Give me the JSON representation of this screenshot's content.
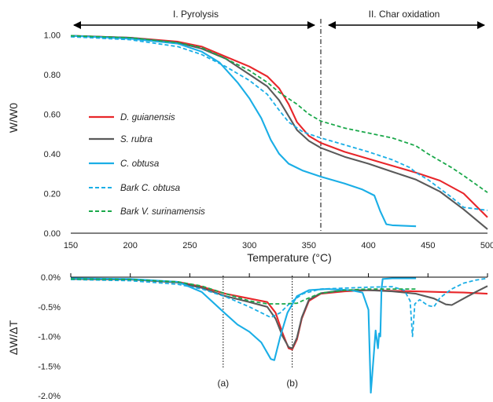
{
  "chart_data": [
    {
      "type": "line",
      "xlabel": "Temperature (°C)",
      "ylabel": "W/W0",
      "xlim": [
        150,
        500
      ],
      "ylim": [
        0,
        1.1
      ],
      "x_ticks": [
        "150",
        "200",
        "250",
        "300",
        "350",
        "400",
        "450",
        "500"
      ],
      "y_ticks": [
        "0.00",
        "0.20",
        "0.40",
        "0.60",
        "0.80",
        "1.00"
      ],
      "grid": false,
      "legend_position": "left",
      "phases": [
        {
          "label": "I. Pyrolysis",
          "x_range": [
            150,
            360
          ]
        },
        {
          "label": "II. Char oxidation",
          "x_range": [
            360,
            500
          ]
        }
      ],
      "phase_boundary_x": 360,
      "series": [
        {
          "name": "D. guianensis",
          "color": "#e8262a",
          "dash": "solid",
          "points": [
            [
              150,
              0.995
            ],
            [
              200,
              0.985
            ],
            [
              240,
              0.965
            ],
            [
              260,
              0.94
            ],
            [
              280,
              0.89
            ],
            [
              300,
              0.84
            ],
            [
              315,
              0.79
            ],
            [
              325,
              0.73
            ],
            [
              333,
              0.65
            ],
            [
              340,
              0.56
            ],
            [
              350,
              0.49
            ],
            [
              360,
              0.455
            ],
            [
              380,
              0.41
            ],
            [
              400,
              0.375
            ],
            [
              420,
              0.34
            ],
            [
              440,
              0.305
            ],
            [
              460,
              0.265
            ],
            [
              480,
              0.2
            ],
            [
              500,
              0.08
            ]
          ]
        },
        {
          "name": "S. rubra",
          "color": "#5a5a5a",
          "dash": "solid",
          "points": [
            [
              150,
              0.995
            ],
            [
              200,
              0.985
            ],
            [
              240,
              0.96
            ],
            [
              260,
              0.93
            ],
            [
              280,
              0.88
            ],
            [
              300,
              0.8
            ],
            [
              315,
              0.74
            ],
            [
              325,
              0.67
            ],
            [
              333,
              0.59
            ],
            [
              340,
              0.52
            ],
            [
              350,
              0.465
            ],
            [
              360,
              0.43
            ],
            [
              380,
              0.385
            ],
            [
              400,
              0.35
            ],
            [
              420,
              0.31
            ],
            [
              440,
              0.27
            ],
            [
              460,
              0.21
            ],
            [
              480,
              0.12
            ],
            [
              500,
              0.02
            ]
          ]
        },
        {
          "name": "C. obtusa",
          "color": "#1aaee6",
          "dash": "solid",
          "points": [
            [
              150,
              0.995
            ],
            [
              200,
              0.98
            ],
            [
              240,
              0.955
            ],
            [
              260,
              0.915
            ],
            [
              275,
              0.86
            ],
            [
              290,
              0.76
            ],
            [
              300,
              0.68
            ],
            [
              310,
              0.58
            ],
            [
              318,
              0.47
            ],
            [
              325,
              0.4
            ],
            [
              333,
              0.35
            ],
            [
              345,
              0.315
            ],
            [
              360,
              0.285
            ],
            [
              380,
              0.25
            ],
            [
              395,
              0.22
            ],
            [
              405,
              0.19
            ],
            [
              410,
              0.11
            ],
            [
              415,
              0.045
            ],
            [
              420,
              0.04
            ],
            [
              440,
              0.035
            ]
          ]
        },
        {
          "name": "Bark C. obtusa",
          "color": "#1aaee6",
          "dash": "dashed",
          "points": [
            [
              150,
              0.99
            ],
            [
              200,
              0.975
            ],
            [
              240,
              0.94
            ],
            [
              260,
              0.9
            ],
            [
              280,
              0.84
            ],
            [
              300,
              0.77
            ],
            [
              315,
              0.7
            ],
            [
              325,
              0.62
            ],
            [
              333,
              0.56
            ],
            [
              345,
              0.51
            ],
            [
              360,
              0.48
            ],
            [
              380,
              0.445
            ],
            [
              400,
              0.41
            ],
            [
              420,
              0.37
            ],
            [
              435,
              0.33
            ],
            [
              440,
              0.305
            ],
            [
              450,
              0.27
            ],
            [
              470,
              0.18
            ],
            [
              480,
              0.13
            ],
            [
              500,
              0.115
            ]
          ]
        },
        {
          "name": "Bark V. surinamensis",
          "color": "#1aa84a",
          "dash": "dashed",
          "points": [
            [
              150,
              0.995
            ],
            [
              200,
              0.985
            ],
            [
              240,
              0.96
            ],
            [
              260,
              0.935
            ],
            [
              280,
              0.88
            ],
            [
              300,
              0.82
            ],
            [
              315,
              0.76
            ],
            [
              325,
              0.71
            ],
            [
              340,
              0.65
            ],
            [
              350,
              0.6
            ],
            [
              360,
              0.565
            ],
            [
              380,
              0.53
            ],
            [
              400,
              0.505
            ],
            [
              420,
              0.48
            ],
            [
              440,
              0.44
            ],
            [
              450,
              0.4
            ],
            [
              470,
              0.33
            ],
            [
              480,
              0.29
            ],
            [
              500,
              0.205
            ]
          ]
        }
      ]
    },
    {
      "type": "line",
      "ylabel": "ΔW/ΔT",
      "xlim": [
        150,
        500
      ],
      "ylim": [
        -2.0,
        0.0
      ],
      "y_ticks": [
        "0.0%",
        "-0.5%",
        "-1.0%",
        "-1.5%",
        "-2.0%"
      ],
      "grid": false,
      "annotations": [
        {
          "label": "(a)",
          "x": 278
        },
        {
          "label": "(b)",
          "x": 336
        }
      ],
      "series": [
        {
          "name": "D. guianensis",
          "color": "#e8262a",
          "dash": "solid",
          "points": [
            [
              150,
              -0.03
            ],
            [
              200,
              -0.04
            ],
            [
              240,
              -0.08
            ],
            [
              260,
              -0.16
            ],
            [
              280,
              -0.28
            ],
            [
              300,
              -0.36
            ],
            [
              315,
              -0.42
            ],
            [
              322,
              -0.6
            ],
            [
              328,
              -0.95
            ],
            [
              333,
              -1.2
            ],
            [
              336,
              -1.22
            ],
            [
              340,
              -1.05
            ],
            [
              344,
              -0.7
            ],
            [
              350,
              -0.4
            ],
            [
              360,
              -0.28
            ],
            [
              380,
              -0.24
            ],
            [
              400,
              -0.22
            ],
            [
              420,
              -0.23
            ],
            [
              440,
              -0.24
            ],
            [
              460,
              -0.25
            ],
            [
              480,
              -0.26
            ],
            [
              500,
              -0.28
            ]
          ]
        },
        {
          "name": "S. rubra",
          "color": "#5a5a5a",
          "dash": "solid",
          "points": [
            [
              150,
              -0.03
            ],
            [
              200,
              -0.04
            ],
            [
              240,
              -0.09
            ],
            [
              260,
              -0.18
            ],
            [
              280,
              -0.32
            ],
            [
              300,
              -0.42
            ],
            [
              315,
              -0.5
            ],
            [
              322,
              -0.7
            ],
            [
              328,
              -1.0
            ],
            [
              333,
              -1.18
            ],
            [
              336,
              -1.2
            ],
            [
              340,
              -1.02
            ],
            [
              344,
              -0.68
            ],
            [
              350,
              -0.38
            ],
            [
              360,
              -0.27
            ],
            [
              380,
              -0.22
            ],
            [
              400,
              -0.22
            ],
            [
              420,
              -0.24
            ],
            [
              440,
              -0.28
            ],
            [
              455,
              -0.36
            ],
            [
              465,
              -0.46
            ],
            [
              470,
              -0.47
            ],
            [
              480,
              -0.36
            ],
            [
              490,
              -0.25
            ],
            [
              500,
              -0.15
            ]
          ]
        },
        {
          "name": "C. obtusa",
          "color": "#1aaee6",
          "dash": "solid",
          "points": [
            [
              150,
              -0.02
            ],
            [
              200,
              -0.03
            ],
            [
              240,
              -0.08
            ],
            [
              260,
              -0.25
            ],
            [
              280,
              -0.62
            ],
            [
              290,
              -0.8
            ],
            [
              300,
              -0.92
            ],
            [
              310,
              -1.1
            ],
            [
              318,
              -1.38
            ],
            [
              321,
              -1.4
            ],
            [
              326,
              -1.0
            ],
            [
              332,
              -0.6
            ],
            [
              340,
              -0.32
            ],
            [
              350,
              -0.22
            ],
            [
              365,
              -0.2
            ],
            [
              385,
              -0.22
            ],
            [
              395,
              -0.26
            ],
            [
              400,
              -0.55
            ],
            [
              402,
              -1.95
            ],
            [
              403,
              -1.7
            ],
            [
              406,
              -0.9
            ],
            [
              408,
              -1.2
            ],
            [
              409,
              -0.95
            ],
            [
              410,
              -1.0
            ],
            [
              411,
              -0.2
            ],
            [
              412,
              -0.03
            ],
            [
              420,
              -0.02
            ],
            [
              440,
              -0.02
            ]
          ]
        },
        {
          "name": "Bark C. obtusa",
          "color": "#1aaee6",
          "dash": "dashed",
          "points": [
            [
              150,
              -0.04
            ],
            [
              200,
              -0.06
            ],
            [
              240,
              -0.12
            ],
            [
              260,
              -0.2
            ],
            [
              280,
              -0.33
            ],
            [
              300,
              -0.5
            ],
            [
              310,
              -0.6
            ],
            [
              318,
              -0.68
            ],
            [
              326,
              -0.6
            ],
            [
              335,
              -0.42
            ],
            [
              345,
              -0.28
            ],
            [
              360,
              -0.2
            ],
            [
              400,
              -0.17
            ],
            [
              420,
              -0.16
            ],
            [
              430,
              -0.22
            ],
            [
              435,
              -0.4
            ],
            [
              437,
              -1.0
            ],
            [
              439,
              -0.45
            ],
            [
              443,
              -0.38
            ],
            [
              450,
              -0.48
            ],
            [
              455,
              -0.5
            ],
            [
              460,
              -0.35
            ],
            [
              470,
              -0.2
            ],
            [
              480,
              -0.1
            ],
            [
              490,
              -0.05
            ],
            [
              500,
              -0.02
            ]
          ]
        },
        {
          "name": "Bark V. surinamensis",
          "color": "#1aa84a",
          "dash": "dashed",
          "points": [
            [
              150,
              -0.03
            ],
            [
              200,
              -0.04
            ],
            [
              240,
              -0.08
            ],
            [
              260,
              -0.15
            ],
            [
              280,
              -0.28
            ],
            [
              300,
              -0.4
            ],
            [
              315,
              -0.45
            ],
            [
              330,
              -0.45
            ],
            [
              340,
              -0.44
            ],
            [
              350,
              -0.35
            ],
            [
              360,
              -0.27
            ],
            [
              380,
              -0.22
            ],
            [
              400,
              -0.2
            ],
            [
              420,
              -0.2
            ],
            [
              440,
              -0.2
            ]
          ]
        }
      ]
    }
  ]
}
